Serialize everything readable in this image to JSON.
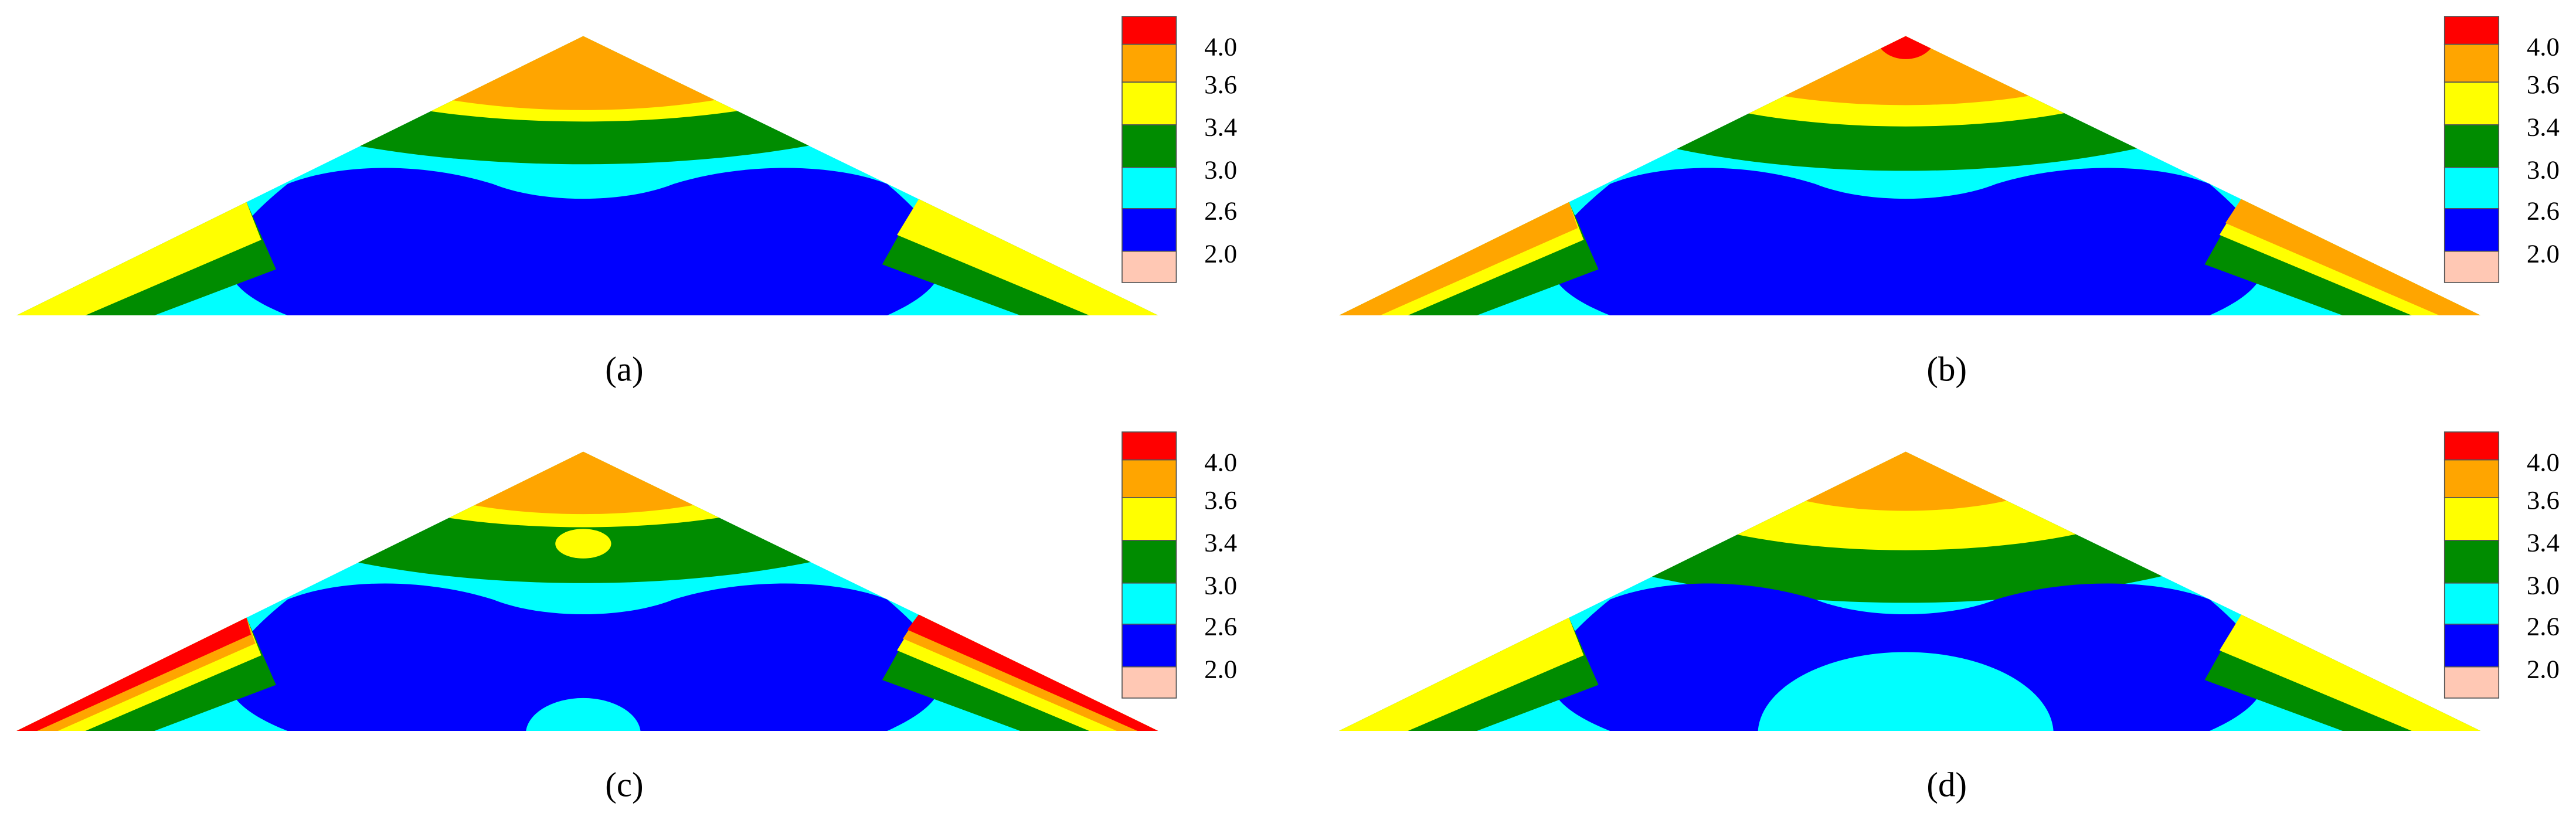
{
  "panels": [
    {
      "label": "(a)"
    },
    {
      "label": "(b)"
    },
    {
      "label": "(c)"
    },
    {
      "label": "(d)"
    }
  ],
  "legend_levels": [
    "4.0",
    "3.6",
    "3.4",
    "3.0",
    "2.6",
    "2.0"
  ]
}
